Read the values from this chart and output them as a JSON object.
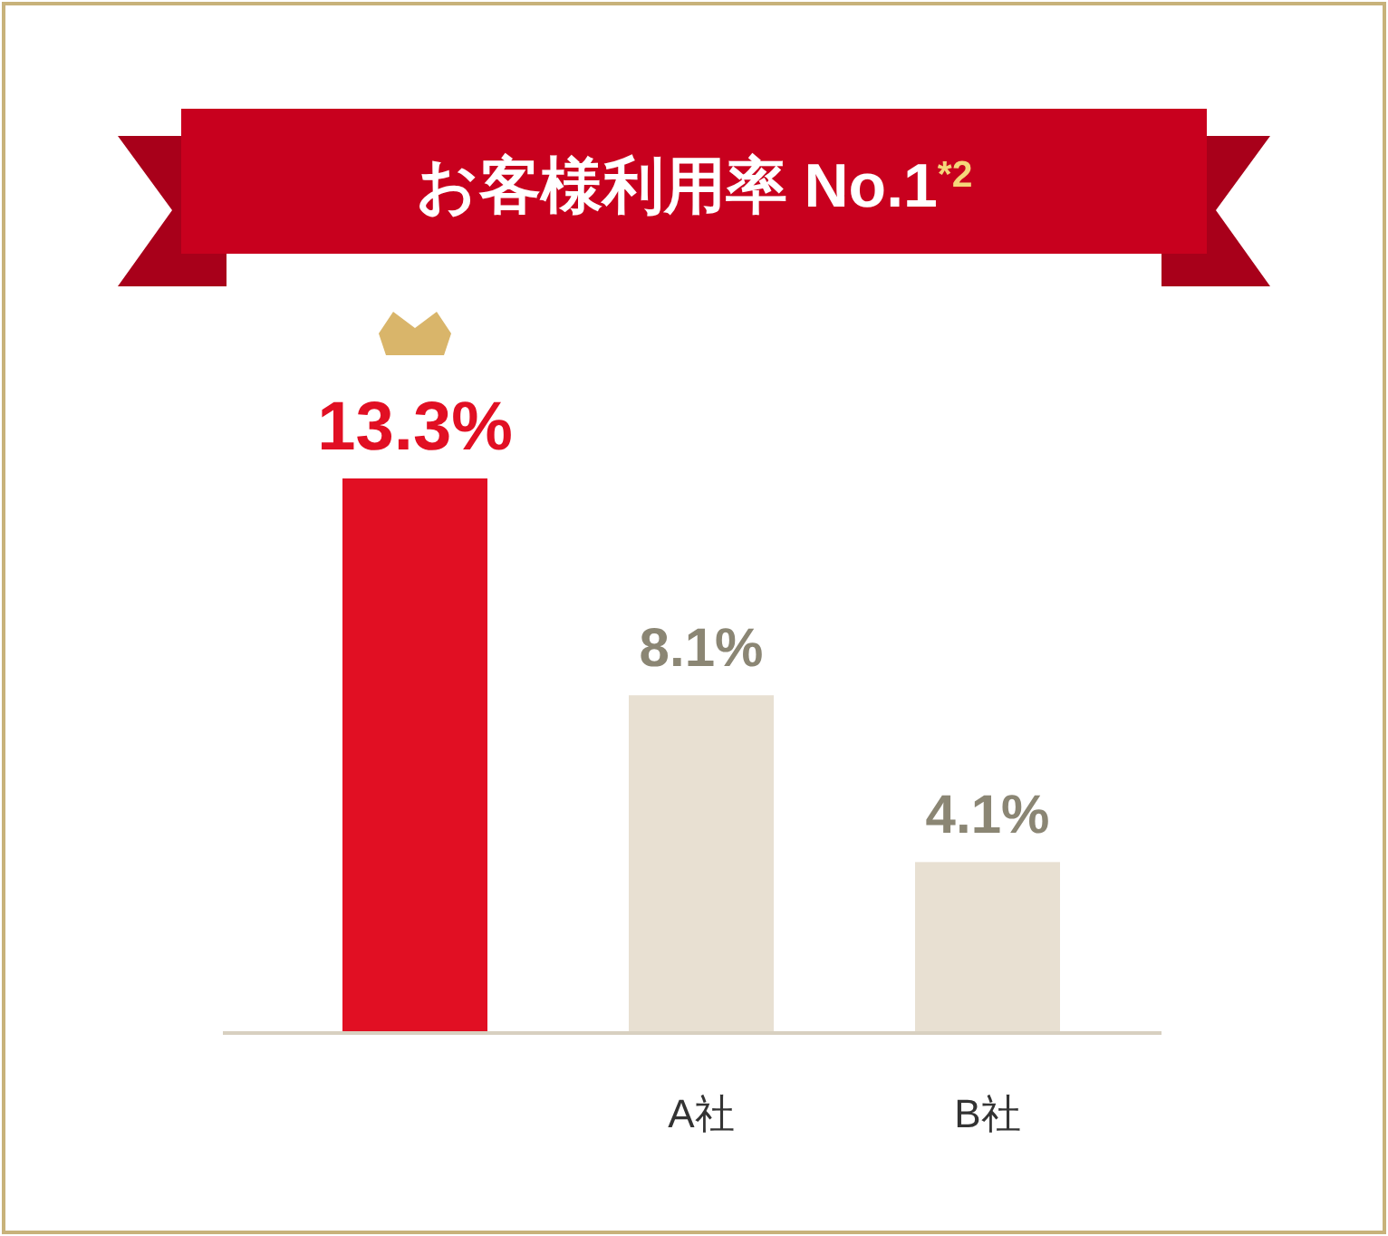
{
  "chart_data": {
    "type": "bar",
    "title": "お客様利用率 No.1$^{*2}$",
    "categories": [
      null,
      "A社",
      "B社"
    ],
    "values": [
      13.3,
      8.1,
      4.1
    ],
    "value_labels": [
      "13.3%",
      "8.1%",
      "4.1%"
    ],
    "colors": [
      "#e10f23",
      "#e8e0d2",
      "#e8e0d2"
    ]
  }
}
